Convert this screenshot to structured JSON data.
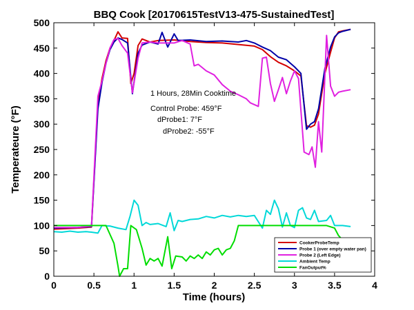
{
  "chart_data": {
    "type": "line",
    "title": "BBQ Cook [20170615TestV13-475-SustainedTest]",
    "xlabel": "Time (hours)",
    "ylabel": "Temperateure (°F)",
    "xlim": [
      0,
      4
    ],
    "ylim": [
      0,
      500
    ],
    "xticks": [
      "0",
      "0.5",
      "1",
      "1.5",
      "2",
      "2.5",
      "3",
      "3.5",
      "4"
    ],
    "yticks": [
      "0",
      "50",
      "100",
      "150",
      "200",
      "250",
      "300",
      "350",
      "400",
      "450",
      "500"
    ],
    "grid": false,
    "legend_position": "bottom-right",
    "annotations": [
      "1 Hours, 28Min Cooktime",
      "Control Probe: 459°F",
      "dProbe1: 7°F",
      "dProbe2: -55°F"
    ],
    "series": [
      {
        "name": "CookerProbeTemp",
        "color": "#d40000",
        "points": [
          [
            0.0,
            93
          ],
          [
            0.3,
            95
          ],
          [
            0.47,
            97
          ],
          [
            0.55,
            340
          ],
          [
            0.6,
            390
          ],
          [
            0.65,
            425
          ],
          [
            0.7,
            450
          ],
          [
            0.75,
            465
          ],
          [
            0.8,
            482
          ],
          [
            0.85,
            470
          ],
          [
            0.92,
            469
          ],
          [
            0.96,
            380
          ],
          [
            1.0,
            400
          ],
          [
            1.05,
            455
          ],
          [
            1.1,
            468
          ],
          [
            1.15,
            465
          ],
          [
            1.2,
            462
          ],
          [
            1.3,
            465
          ],
          [
            1.5,
            466
          ],
          [
            1.7,
            463
          ],
          [
            1.9,
            461
          ],
          [
            2.1,
            460
          ],
          [
            2.3,
            457
          ],
          [
            2.5,
            454
          ],
          [
            2.6,
            447
          ],
          [
            2.7,
            433
          ],
          [
            2.8,
            422
          ],
          [
            2.9,
            415
          ],
          [
            3.0,
            405
          ],
          [
            3.08,
            395
          ],
          [
            3.15,
            297
          ],
          [
            3.2,
            294
          ],
          [
            3.25,
            298
          ],
          [
            3.3,
            320
          ],
          [
            3.38,
            400
          ],
          [
            3.45,
            442
          ],
          [
            3.5,
            470
          ],
          [
            3.55,
            482
          ],
          [
            3.6,
            484
          ],
          [
            3.7,
            487
          ]
        ]
      },
      {
        "name": "Probe 1 (over empty water pan)",
        "color": "#0000a8",
        "points": [
          [
            0.0,
            95
          ],
          [
            0.3,
            96
          ],
          [
            0.47,
            98
          ],
          [
            0.55,
            330
          ],
          [
            0.6,
            382
          ],
          [
            0.65,
            420
          ],
          [
            0.7,
            447
          ],
          [
            0.75,
            462
          ],
          [
            0.8,
            470
          ],
          [
            0.85,
            467
          ],
          [
            0.92,
            460
          ],
          [
            0.98,
            360
          ],
          [
            1.05,
            440
          ],
          [
            1.1,
            456
          ],
          [
            1.2,
            462
          ],
          [
            1.3,
            458
          ],
          [
            1.35,
            481
          ],
          [
            1.42,
            452
          ],
          [
            1.5,
            478
          ],
          [
            1.55,
            465
          ],
          [
            1.7,
            466
          ],
          [
            1.9,
            463
          ],
          [
            2.1,
            464
          ],
          [
            2.3,
            462
          ],
          [
            2.4,
            465
          ],
          [
            2.5,
            460
          ],
          [
            2.6,
            452
          ],
          [
            2.7,
            445
          ],
          [
            2.8,
            432
          ],
          [
            2.9,
            427
          ],
          [
            3.0,
            413
          ],
          [
            3.08,
            400
          ],
          [
            3.15,
            290
          ],
          [
            3.2,
            300
          ],
          [
            3.25,
            305
          ],
          [
            3.3,
            330
          ],
          [
            3.38,
            410
          ],
          [
            3.45,
            452
          ],
          [
            3.5,
            472
          ],
          [
            3.55,
            480
          ],
          [
            3.6,
            483
          ],
          [
            3.7,
            487
          ]
        ]
      },
      {
        "name": "Probe 2 (Left Edge)",
        "color": "#e020e0",
        "points": [
          [
            0.0,
            96
          ],
          [
            0.3,
            96
          ],
          [
            0.47,
            99
          ],
          [
            0.55,
            355
          ],
          [
            0.6,
            385
          ],
          [
            0.65,
            420
          ],
          [
            0.7,
            450
          ],
          [
            0.75,
            467
          ],
          [
            0.8,
            469
          ],
          [
            0.85,
            455
          ],
          [
            0.92,
            440
          ],
          [
            0.98,
            362
          ],
          [
            1.05,
            430
          ],
          [
            1.1,
            460
          ],
          [
            1.2,
            462
          ],
          [
            1.3,
            460
          ],
          [
            1.5,
            460
          ],
          [
            1.6,
            465
          ],
          [
            1.7,
            458
          ],
          [
            1.75,
            415
          ],
          [
            1.8,
            418
          ],
          [
            1.9,
            405
          ],
          [
            2.0,
            397
          ],
          [
            2.1,
            378
          ],
          [
            2.2,
            365
          ],
          [
            2.3,
            358
          ],
          [
            2.4,
            350
          ],
          [
            2.45,
            342
          ],
          [
            2.55,
            335
          ],
          [
            2.6,
            430
          ],
          [
            2.65,
            432
          ],
          [
            2.7,
            380
          ],
          [
            2.75,
            345
          ],
          [
            2.8,
            368
          ],
          [
            2.85,
            392
          ],
          [
            2.9,
            360
          ],
          [
            2.95,
            385
          ],
          [
            3.0,
            405
          ],
          [
            3.05,
            390
          ],
          [
            3.12,
            245
          ],
          [
            3.18,
            240
          ],
          [
            3.22,
            255
          ],
          [
            3.26,
            215
          ],
          [
            3.3,
            305
          ],
          [
            3.34,
            245
          ],
          [
            3.4,
            475
          ],
          [
            3.45,
            375
          ],
          [
            3.5,
            355
          ],
          [
            3.55,
            363
          ],
          [
            3.6,
            365
          ],
          [
            3.7,
            368
          ]
        ]
      },
      {
        "name": "Ambient Temp",
        "color": "#00d8d8",
        "points": [
          [
            0.0,
            88
          ],
          [
            0.1,
            87
          ],
          [
            0.2,
            89
          ],
          [
            0.3,
            87
          ],
          [
            0.4,
            88
          ],
          [
            0.47,
            87
          ],
          [
            0.55,
            85
          ],
          [
            0.6,
            100
          ],
          [
            0.7,
            99
          ],
          [
            0.8,
            95
          ],
          [
            0.9,
            92
          ],
          [
            0.95,
            118
          ],
          [
            1.0,
            150
          ],
          [
            1.05,
            140
          ],
          [
            1.1,
            100
          ],
          [
            1.15,
            106
          ],
          [
            1.2,
            102
          ],
          [
            1.3,
            104
          ],
          [
            1.4,
            98
          ],
          [
            1.45,
            125
          ],
          [
            1.5,
            90
          ],
          [
            1.55,
            110
          ],
          [
            1.6,
            108
          ],
          [
            1.7,
            112
          ],
          [
            1.8,
            113
          ],
          [
            1.9,
            118
          ],
          [
            2.0,
            115
          ],
          [
            2.1,
            120
          ],
          [
            2.2,
            117
          ],
          [
            2.3,
            120
          ],
          [
            2.4,
            118
          ],
          [
            2.5,
            120
          ],
          [
            2.6,
            95
          ],
          [
            2.65,
            130
          ],
          [
            2.7,
            122
          ],
          [
            2.75,
            150
          ],
          [
            2.8,
            133
          ],
          [
            2.85,
            97
          ],
          [
            2.9,
            125
          ],
          [
            2.95,
            100
          ],
          [
            3.0,
            96
          ],
          [
            3.05,
            130
          ],
          [
            3.1,
            135
          ],
          [
            3.15,
            115
          ],
          [
            3.2,
            112
          ],
          [
            3.25,
            130
          ],
          [
            3.3,
            108
          ],
          [
            3.4,
            110
          ],
          [
            3.45,
            120
          ],
          [
            3.5,
            100
          ],
          [
            3.6,
            100
          ],
          [
            3.7,
            98
          ]
        ]
      },
      {
        "name": "FanOutput%",
        "color": "#00dd00",
        "points": [
          [
            0.0,
            100
          ],
          [
            0.5,
            100
          ],
          [
            0.55,
            100
          ],
          [
            0.65,
            100
          ],
          [
            0.75,
            65
          ],
          [
            0.8,
            20
          ],
          [
            0.82,
            0
          ],
          [
            0.87,
            15
          ],
          [
            0.92,
            15
          ],
          [
            0.96,
            100
          ],
          [
            1.03,
            92
          ],
          [
            1.1,
            55
          ],
          [
            1.15,
            22
          ],
          [
            1.2,
            35
          ],
          [
            1.25,
            30
          ],
          [
            1.3,
            35
          ],
          [
            1.35,
            20
          ],
          [
            1.42,
            78
          ],
          [
            1.47,
            15
          ],
          [
            1.52,
            40
          ],
          [
            1.6,
            38
          ],
          [
            1.65,
            30
          ],
          [
            1.7,
            40
          ],
          [
            1.75,
            35
          ],
          [
            1.8,
            42
          ],
          [
            1.85,
            35
          ],
          [
            1.9,
            48
          ],
          [
            1.95,
            42
          ],
          [
            2.0,
            52
          ],
          [
            2.05,
            55
          ],
          [
            2.1,
            42
          ],
          [
            2.15,
            52
          ],
          [
            2.2,
            55
          ],
          [
            2.25,
            70
          ],
          [
            2.3,
            100
          ],
          [
            2.5,
            100
          ],
          [
            2.8,
            100
          ],
          [
            3.0,
            100
          ],
          [
            3.2,
            100
          ],
          [
            3.4,
            100
          ],
          [
            3.5,
            95
          ],
          [
            3.55,
            80
          ],
          [
            3.58,
            75
          ]
        ]
      }
    ]
  }
}
